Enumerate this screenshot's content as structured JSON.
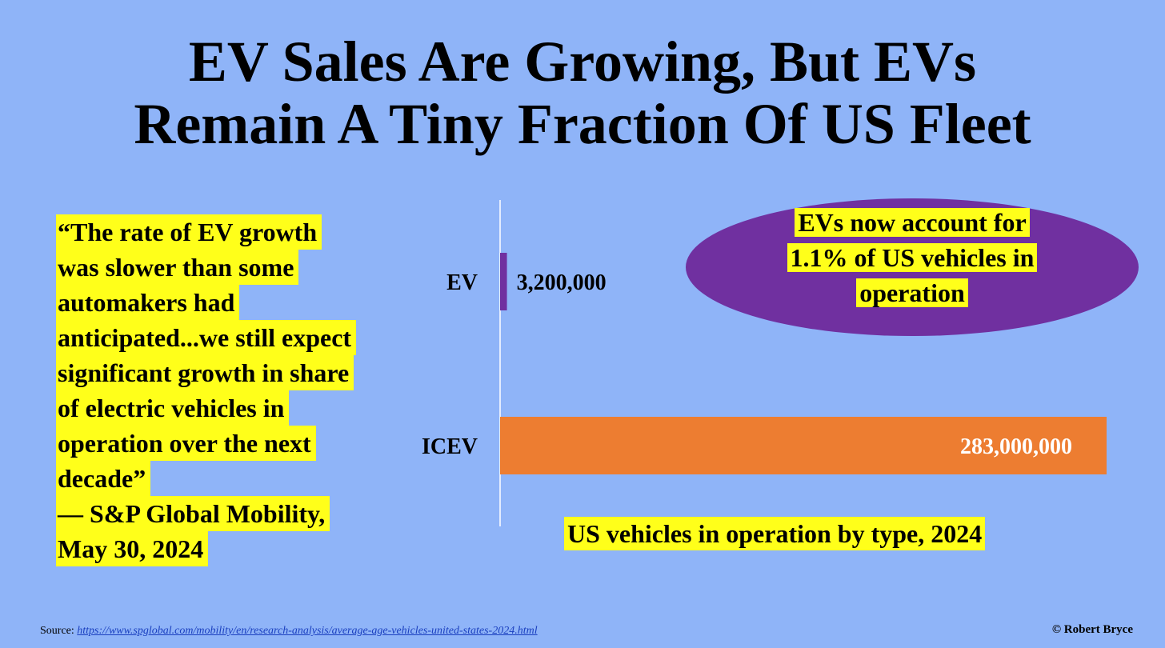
{
  "title": {
    "line1": "EV Sales Are Growing, But EVs",
    "line2": "Remain A Tiny Fraction Of US Fleet"
  },
  "quote": {
    "lines": [
      "“The rate of EV growth",
      "was slower than some",
      "automakers had",
      "anticipated...we still expect",
      "significant growth in share",
      "of electric vehicles in",
      "operation over the next",
      "decade”",
      "— S&P Global Mobility,",
      "May 30, 2024"
    ]
  },
  "callout": {
    "lines": [
      "EVs now account for",
      "1.1% of  US vehicles in",
      "operation"
    ],
    "color": "#7030a0"
  },
  "chart_data": {
    "type": "bar",
    "orientation": "horizontal",
    "categories": [
      "EV",
      "ICEV"
    ],
    "values": [
      3200000,
      283000000
    ],
    "data_labels": [
      "3,200,000",
      "283,000,000"
    ],
    "colors": [
      "#7030a0",
      "#ed7d31"
    ],
    "caption": "US vehicles in operation by type, 2024",
    "xlim": [
      0,
      283000000
    ]
  },
  "footer": {
    "source_label": "Source",
    "source_url": "https://www.spglobal.com/mobility/en/research-analysis/average-age-vehicles-united-states-2024.html",
    "copyright": "© Robert Bryce"
  }
}
